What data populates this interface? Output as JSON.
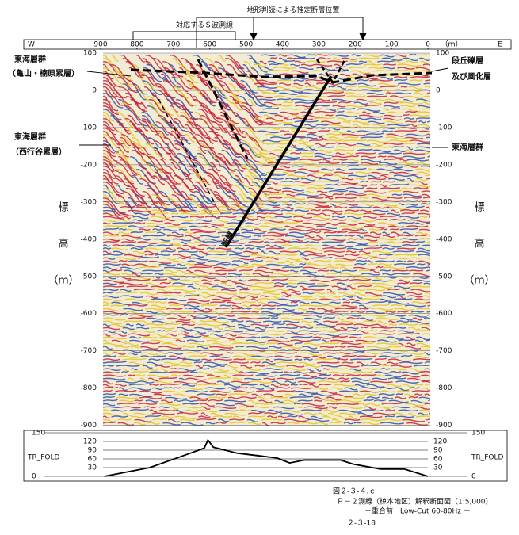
{
  "header": {
    "fault_annotation": "地形判読による推定断層位置",
    "s_wave_line": "対応するＳ波測線"
  },
  "distance_axis": {
    "west": "W",
    "east": "E",
    "unit": "（ｍ）",
    "ticks": [
      900,
      800,
      700,
      600,
      500,
      400,
      300,
      200,
      100,
      0
    ]
  },
  "depth_axis": {
    "ticks": [
      100,
      0,
      -100,
      -200,
      -300,
      -400,
      -500,
      -600,
      -700,
      -800,
      -900
    ],
    "label": [
      "標",
      "高",
      "（ｍ）"
    ]
  },
  "annotations": {
    "tokai_upper": "東海層群",
    "kameyama": "（亀山・楠原累層）",
    "tokai_lower": "東海層群",
    "nishigyoya": "（西行谷累層）",
    "terrace": "段丘礫層",
    "weathered": "及び風化層",
    "tokai_right": "東海層群",
    "fault": "断層"
  },
  "chart_data": {
    "type": "line",
    "ylabel": "TR_FOLD",
    "x": [
      890,
      765,
      675,
      615,
      605,
      590,
      525,
      460,
      415,
      380,
      340,
      240,
      205,
      130,
      65,
      0
    ],
    "values": [
      0,
      30,
      70,
      97,
      125,
      100,
      80,
      70,
      63,
      46,
      56,
      56,
      42,
      25,
      25,
      0
    ],
    "xlim": [
      900,
      0
    ],
    "ylim": [
      0,
      150
    ],
    "yticks": [
      0,
      30,
      60,
      90,
      120,
      150
    ],
    "color": "#000000"
  },
  "caption": {
    "figure": "図２-３-４.ｃ",
    "title": "Ｐ－２測線（椋本地区）解釈断面図（1:5,000）",
    "subtitle": "－重合前　Low-Cut 60-80Hz －",
    "page": "２-３-18"
  }
}
